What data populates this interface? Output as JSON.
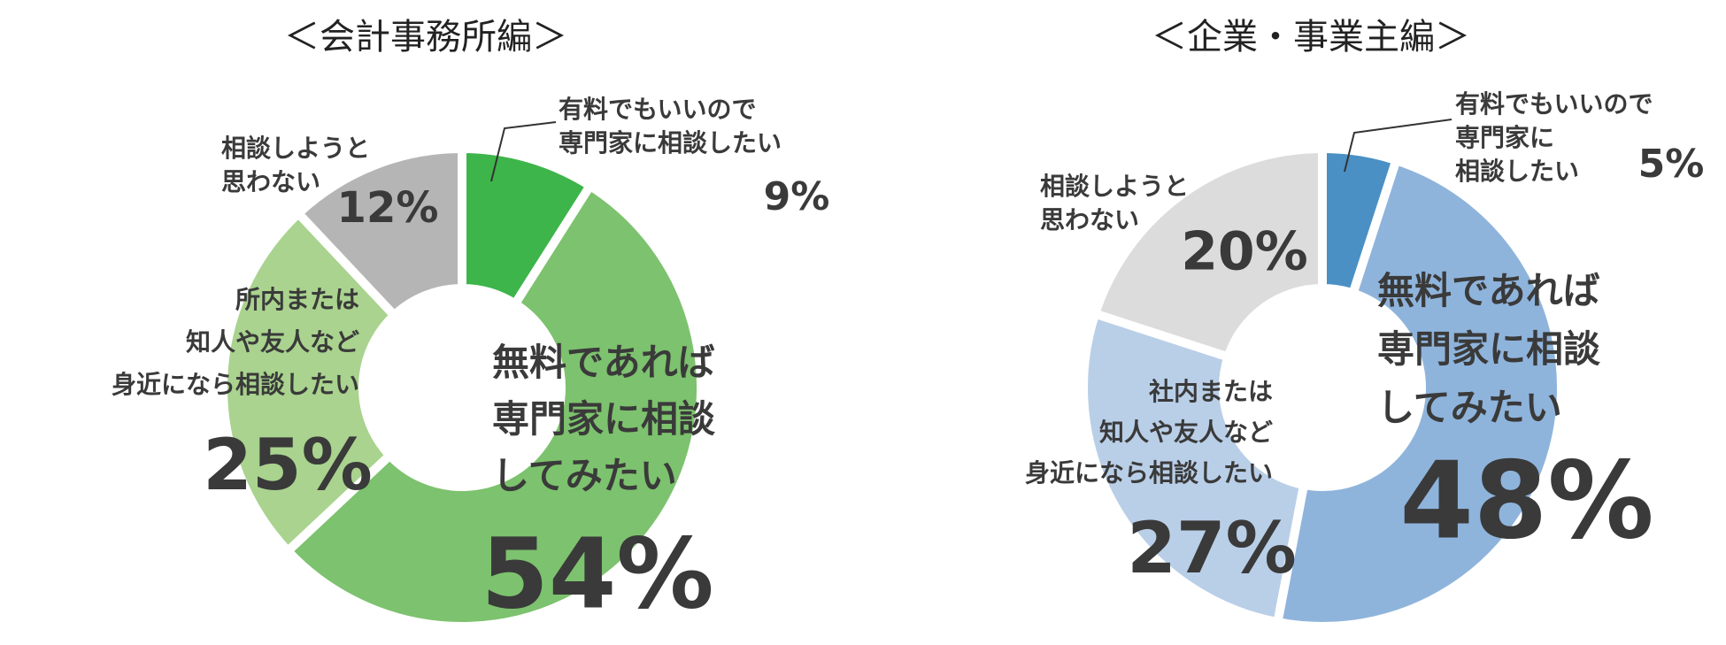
{
  "chart_data": [
    {
      "type": "donut",
      "title": "＜会計事務所編＞",
      "categories": [
        [
          "有料でもいいので",
          "専門家に相談したい"
        ],
        [
          "無料であれば",
          "専門家に相談",
          "してみたい"
        ],
        [
          "所内または",
          "知人や友人など",
          "身近になら相談したい"
        ],
        [
          "相談しようと",
          "思わない"
        ]
      ],
      "values": [
        9,
        54,
        25,
        12
      ],
      "value_labels": [
        "9%",
        "54%",
        "25%",
        "12%"
      ],
      "colors": [
        "#3db54a",
        "#7dc26e",
        "#a9d38e",
        "#b5b5b6"
      ]
    },
    {
      "type": "donut",
      "title": "＜企業・事業主編＞",
      "categories": [
        [
          "有料でもいいので",
          "専門家に",
          "相談したい"
        ],
        [
          "無料であれば",
          "専門家に相談",
          "してみたい"
        ],
        [
          "社内または",
          "知人や友人など",
          "身近になら相談したい"
        ],
        [
          "相談しようと",
          "思わない"
        ]
      ],
      "values": [
        5,
        48,
        27,
        20
      ],
      "value_labels": [
        "5%",
        "48%",
        "27%",
        "20%"
      ],
      "colors": [
        "#4a90c4",
        "#8fb4dc",
        "#b9cfe8",
        "#dcdcdd"
      ]
    }
  ]
}
